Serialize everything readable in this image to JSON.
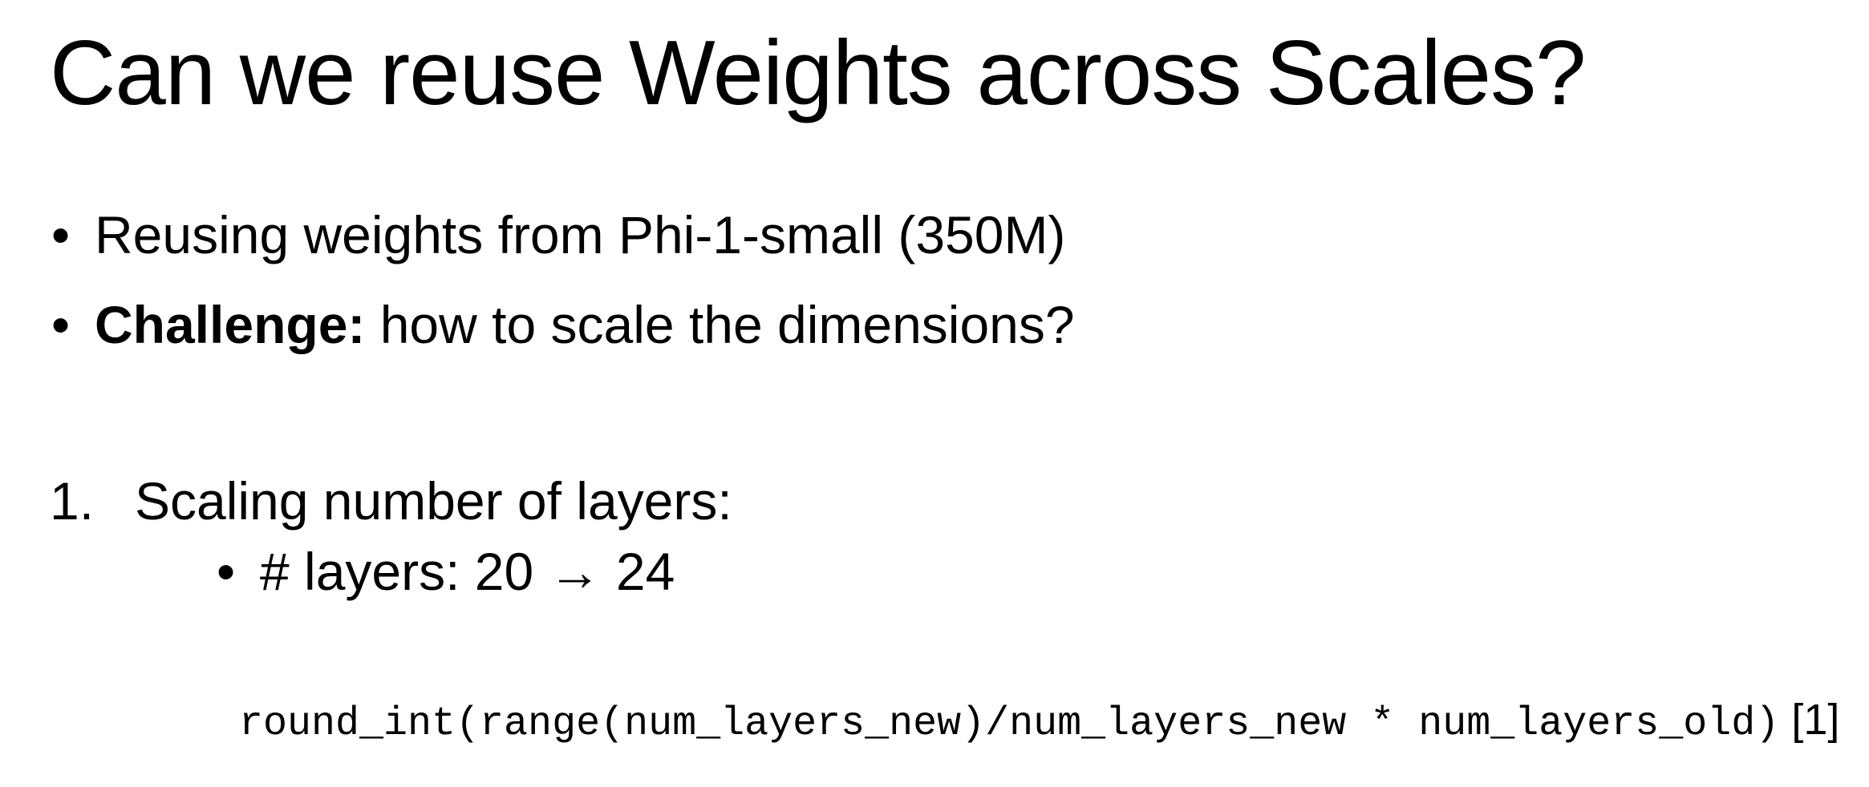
{
  "slide": {
    "title": "Can we reuse Weights across Scales?",
    "bullets": [
      {
        "bold": "",
        "text": "Reusing weights from Phi-1-small (350M)"
      },
      {
        "bold": "Challenge:",
        "text": " how to scale the dimensions?"
      }
    ],
    "bullet_glyph": "•",
    "numbered_item": {
      "marker": "1.",
      "text": "Scaling number of layers:"
    },
    "sub_bullet": {
      "glyph": "•",
      "text": "# layers: 20 → 24"
    },
    "formula": {
      "code": "round_int(range(num_layers_new)/num_layers_new * num_layers_old)",
      "reference": " [1]"
    }
  }
}
